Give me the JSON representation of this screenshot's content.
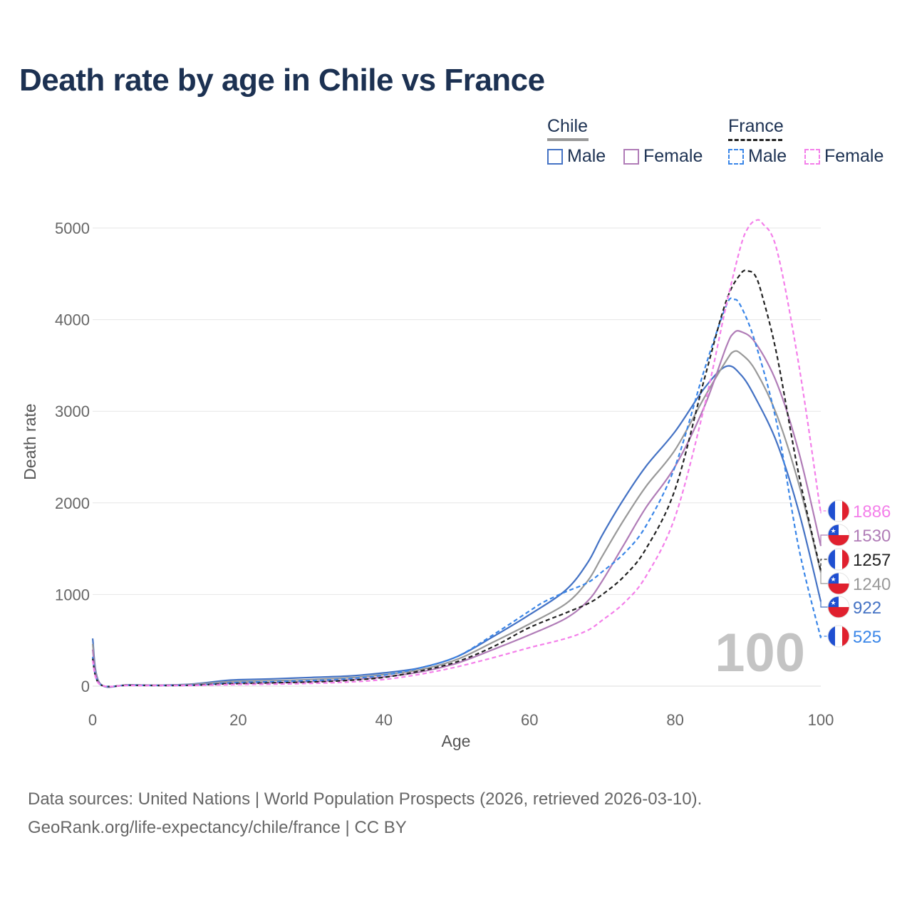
{
  "title": "Death rate by age in Chile vs France",
  "legend": {
    "groups": [
      {
        "label": "Chile",
        "items": [
          {
            "label": "Male",
            "color": "#4472c4",
            "dash": false
          },
          {
            "label": "Female",
            "color": "#b07cb7",
            "dash": false
          }
        ]
      },
      {
        "label": "France",
        "items": [
          {
            "label": "Male",
            "color": "#3a86e8",
            "dash": true
          },
          {
            "label": "Female",
            "color": "#f47fea",
            "dash": true
          }
        ]
      }
    ]
  },
  "chart_data": {
    "type": "line",
    "title": "Death rate by age in Chile vs France",
    "xlabel": "Age",
    "ylabel": "Death rate",
    "xlim": [
      0,
      100
    ],
    "ylim": [
      0,
      5000
    ],
    "xticks": [
      0,
      20,
      40,
      60,
      80,
      100
    ],
    "yticks": [
      0,
      1000,
      2000,
      3000,
      4000,
      5000
    ],
    "grid": true,
    "big_label": "100",
    "series": [
      {
        "name": "Chile Male",
        "color": "#4472c4",
        "dash": false,
        "end_label": "922",
        "points": [
          [
            0,
            520
          ],
          [
            1,
            30
          ],
          [
            5,
            15
          ],
          [
            10,
            12
          ],
          [
            14,
            25
          ],
          [
            18,
            60
          ],
          [
            20,
            70
          ],
          [
            25,
            80
          ],
          [
            30,
            95
          ],
          [
            35,
            110
          ],
          [
            40,
            145
          ],
          [
            45,
            200
          ],
          [
            50,
            320
          ],
          [
            55,
            540
          ],
          [
            60,
            780
          ],
          [
            65,
            1050
          ],
          [
            68,
            1350
          ],
          [
            70,
            1650
          ],
          [
            73,
            2050
          ],
          [
            76,
            2400
          ],
          [
            80,
            2780
          ],
          [
            84,
            3250
          ],
          [
            87,
            3490
          ],
          [
            89,
            3400
          ],
          [
            91,
            3150
          ],
          [
            94,
            2650
          ],
          [
            97,
            1900
          ],
          [
            100,
            922
          ]
        ]
      },
      {
        "name": "Chile Both",
        "color": "#999999",
        "dash": false,
        "end_label": "1240",
        "points": [
          [
            0,
            460
          ],
          [
            1,
            28
          ],
          [
            5,
            14
          ],
          [
            10,
            11
          ],
          [
            14,
            20
          ],
          [
            18,
            45
          ],
          [
            20,
            52
          ],
          [
            25,
            60
          ],
          [
            30,
            72
          ],
          [
            35,
            90
          ],
          [
            40,
            125
          ],
          [
            45,
            180
          ],
          [
            50,
            290
          ],
          [
            55,
            480
          ],
          [
            60,
            680
          ],
          [
            65,
            900
          ],
          [
            68,
            1150
          ],
          [
            70,
            1420
          ],
          [
            73,
            1820
          ],
          [
            76,
            2180
          ],
          [
            80,
            2580
          ],
          [
            84,
            3150
          ],
          [
            87,
            3550
          ],
          [
            88,
            3650
          ],
          [
            89,
            3630
          ],
          [
            91,
            3450
          ],
          [
            94,
            2950
          ],
          [
            97,
            2200
          ],
          [
            100,
            1240
          ]
        ]
      },
      {
        "name": "Chile Female",
        "color": "#b07cb7",
        "dash": false,
        "end_label": "1530",
        "points": [
          [
            0,
            400
          ],
          [
            1,
            25
          ],
          [
            5,
            12
          ],
          [
            10,
            10
          ],
          [
            14,
            14
          ],
          [
            18,
            28
          ],
          [
            20,
            32
          ],
          [
            25,
            38
          ],
          [
            30,
            50
          ],
          [
            35,
            68
          ],
          [
            40,
            100
          ],
          [
            45,
            155
          ],
          [
            50,
            250
          ],
          [
            55,
            400
          ],
          [
            60,
            560
          ],
          [
            65,
            740
          ],
          [
            68,
            930
          ],
          [
            70,
            1150
          ],
          [
            73,
            1550
          ],
          [
            76,
            1950
          ],
          [
            80,
            2400
          ],
          [
            84,
            3050
          ],
          [
            87,
            3700
          ],
          [
            88,
            3850
          ],
          [
            89,
            3870
          ],
          [
            91,
            3750
          ],
          [
            94,
            3300
          ],
          [
            97,
            2550
          ],
          [
            100,
            1530
          ]
        ]
      },
      {
        "name": "France Male",
        "color": "#3a86e8",
        "dash": true,
        "end_label": "525",
        "points": [
          [
            0,
            320
          ],
          [
            1,
            22
          ],
          [
            5,
            10
          ],
          [
            10,
            8
          ],
          [
            14,
            12
          ],
          [
            18,
            32
          ],
          [
            20,
            40
          ],
          [
            25,
            50
          ],
          [
            30,
            60
          ],
          [
            35,
            80
          ],
          [
            40,
            120
          ],
          [
            45,
            200
          ],
          [
            50,
            320
          ],
          [
            55,
            560
          ],
          [
            60,
            820
          ],
          [
            62,
            920
          ],
          [
            65,
            1030
          ],
          [
            68,
            1130
          ],
          [
            70,
            1250
          ],
          [
            73,
            1450
          ],
          [
            76,
            1750
          ],
          [
            80,
            2400
          ],
          [
            84,
            3450
          ],
          [
            87,
            4150
          ],
          [
            88,
            4220
          ],
          [
            89,
            4150
          ],
          [
            91,
            3750
          ],
          [
            94,
            2850
          ],
          [
            97,
            1500
          ],
          [
            100,
            525
          ]
        ]
      },
      {
        "name": "France Both",
        "color": "#222222",
        "dash": true,
        "end_label": "1257",
        "points": [
          [
            0,
            300
          ],
          [
            1,
            20
          ],
          [
            5,
            9
          ],
          [
            10,
            7
          ],
          [
            14,
            10
          ],
          [
            18,
            24
          ],
          [
            20,
            28
          ],
          [
            25,
            36
          ],
          [
            30,
            45
          ],
          [
            35,
            62
          ],
          [
            40,
            96
          ],
          [
            45,
            165
          ],
          [
            50,
            265
          ],
          [
            55,
            430
          ],
          [
            60,
            640
          ],
          [
            65,
            800
          ],
          [
            68,
            900
          ],
          [
            70,
            1000
          ],
          [
            73,
            1200
          ],
          [
            76,
            1500
          ],
          [
            80,
            2150
          ],
          [
            84,
            3350
          ],
          [
            87,
            4200
          ],
          [
            89,
            4500
          ],
          [
            90,
            4530
          ],
          [
            91,
            4480
          ],
          [
            92,
            4250
          ],
          [
            94,
            3600
          ],
          [
            97,
            2300
          ],
          [
            100,
            1257
          ]
        ]
      },
      {
        "name": "France Female",
        "color": "#f47fea",
        "dash": true,
        "end_label": "1886",
        "points": [
          [
            0,
            280
          ],
          [
            1,
            18
          ],
          [
            5,
            8
          ],
          [
            10,
            6
          ],
          [
            14,
            8
          ],
          [
            18,
            15
          ],
          [
            20,
            18
          ],
          [
            25,
            22
          ],
          [
            30,
            30
          ],
          [
            35,
            44
          ],
          [
            40,
            72
          ],
          [
            45,
            130
          ],
          [
            50,
            210
          ],
          [
            55,
            310
          ],
          [
            60,
            420
          ],
          [
            65,
            520
          ],
          [
            68,
            610
          ],
          [
            70,
            720
          ],
          [
            73,
            910
          ],
          [
            76,
            1200
          ],
          [
            80,
            1850
          ],
          [
            84,
            3050
          ],
          [
            87,
            4150
          ],
          [
            89,
            4800
          ],
          [
            90,
            5000
          ],
          [
            91,
            5080
          ],
          [
            92,
            5050
          ],
          [
            94,
            4750
          ],
          [
            97,
            3500
          ],
          [
            100,
            1886
          ]
        ]
      }
    ]
  },
  "end_labels": [
    {
      "value": "1886",
      "country": "France",
      "color": "#f47fea"
    },
    {
      "value": "1530",
      "country": "Chile",
      "color": "#b07cb7"
    },
    {
      "value": "1257",
      "country": "France",
      "color": "#222222"
    },
    {
      "value": "1240",
      "country": "Chile",
      "color": "#999999"
    },
    {
      "value": "922",
      "country": "Chile",
      "color": "#4472c4"
    },
    {
      "value": "525",
      "country": "France",
      "color": "#3a86e8"
    }
  ],
  "sources": {
    "line1": "Data sources: United Nations | World Population Prospects (2026, retrieved 2026-03-10).",
    "line2": "GeoRank.org/life-expectancy/chile/france | CC BY"
  }
}
